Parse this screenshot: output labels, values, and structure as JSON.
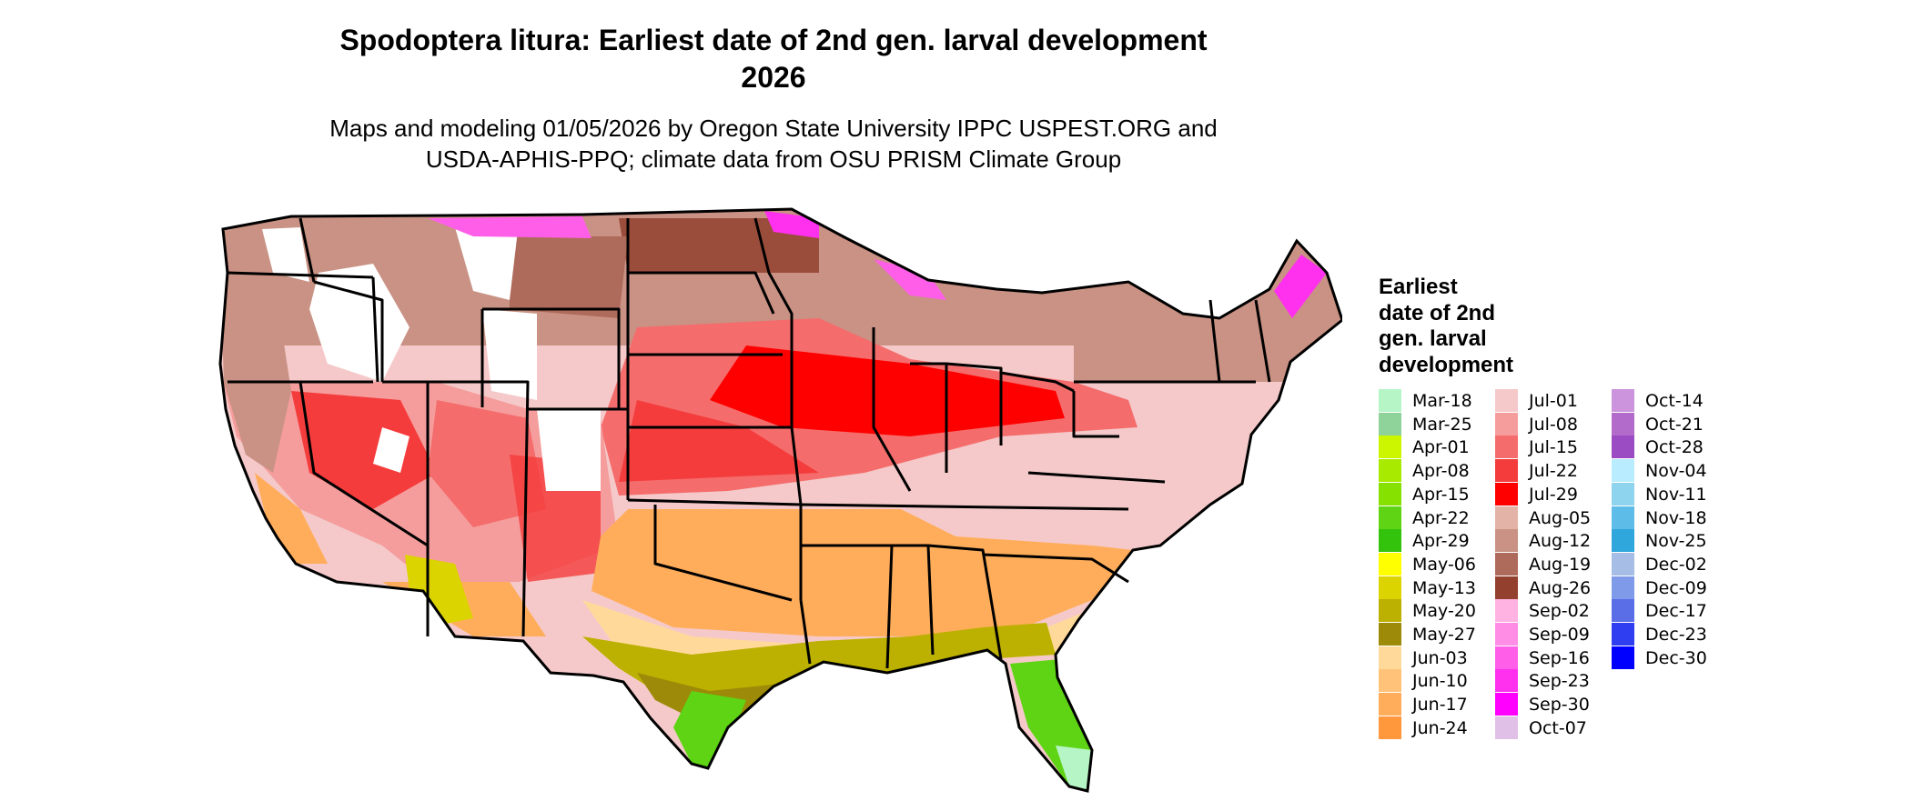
{
  "title_lines": [
    "Spodoptera litura: Earliest date of 2nd gen. larval development",
    "2026"
  ],
  "subtitle_lines": [
    "Maps and modeling 01/05/2026 by Oregon State University IPPC USPEST.ORG and",
    "USDA-APHIS-PPQ; climate data from OSU PRISM Climate Group"
  ],
  "legend": {
    "title_lines": [
      "Earliest",
      "date of 2nd",
      "gen. larval",
      "development"
    ],
    "items": [
      {
        "label": "Mar-18",
        "color": "#b6f5c6"
      },
      {
        "label": "Mar-25",
        "color": "#8fd39a"
      },
      {
        "label": "Apr-01",
        "color": "#ccf500"
      },
      {
        "label": "Apr-08",
        "color": "#a8ea00"
      },
      {
        "label": "Apr-15",
        "color": "#86e000"
      },
      {
        "label": "Apr-22",
        "color": "#5ed414"
      },
      {
        "label": "Apr-29",
        "color": "#33c30c"
      },
      {
        "label": "May-06",
        "color": "#ffff00"
      },
      {
        "label": "May-13",
        "color": "#dcd400"
      },
      {
        "label": "May-20",
        "color": "#bcb000"
      },
      {
        "label": "May-27",
        "color": "#9c8a08"
      },
      {
        "label": "Jun-03",
        "color": "#ffd99a"
      },
      {
        "label": "Jun-10",
        "color": "#ffc278"
      },
      {
        "label": "Jun-17",
        "color": "#ffad5a"
      },
      {
        "label": "Jun-24",
        "color": "#ff973c"
      },
      {
        "label": "Jul-01",
        "color": "#f5c9c9"
      },
      {
        "label": "Jul-08",
        "color": "#f59d9d"
      },
      {
        "label": "Jul-15",
        "color": "#f56c6c"
      },
      {
        "label": "Jul-22",
        "color": "#f53c3c"
      },
      {
        "label": "Jul-29",
        "color": "#ff0000"
      },
      {
        "label": "Aug-05",
        "color": "#e3b3a8"
      },
      {
        "label": "Aug-12",
        "color": "#c99284"
      },
      {
        "label": "Aug-19",
        "color": "#ae6a5a"
      },
      {
        "label": "Aug-26",
        "color": "#93412e"
      },
      {
        "label": "Sep-02",
        "color": "#ffb3e2"
      },
      {
        "label": "Sep-09",
        "color": "#ff8de6"
      },
      {
        "label": "Sep-16",
        "color": "#ff5fe8"
      },
      {
        "label": "Sep-23",
        "color": "#ff30ee"
      },
      {
        "label": "Sep-30",
        "color": "#ff00ff"
      },
      {
        "label": "Oct-07",
        "color": "#e0c0e6"
      },
      {
        "label": "Oct-14",
        "color": "#cb94dc"
      },
      {
        "label": "Oct-21",
        "color": "#b26bcb"
      },
      {
        "label": "Oct-28",
        "color": "#9c4cc2"
      },
      {
        "label": "Nov-04",
        "color": "#b9ecff"
      },
      {
        "label": "Nov-11",
        "color": "#8fd4ef"
      },
      {
        "label": "Nov-18",
        "color": "#5dbde8"
      },
      {
        "label": "Nov-25",
        "color": "#2fa6dc"
      },
      {
        "label": "Dec-02",
        "color": "#a6bde6"
      },
      {
        "label": "Dec-09",
        "color": "#7f9ae8"
      },
      {
        "label": "Dec-17",
        "color": "#5a6ee8"
      },
      {
        "label": "Dec-23",
        "color": "#2f3ef0"
      },
      {
        "label": "Dec-30",
        "color": "#0000ff"
      }
    ]
  }
}
